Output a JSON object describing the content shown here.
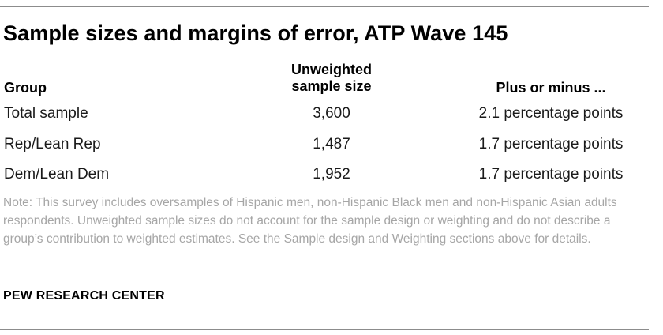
{
  "title": "Sample sizes and margins of error, ATP Wave 145",
  "table": {
    "headers": {
      "group": "Group",
      "sample_size_line1": "Unweighted",
      "sample_size_line2": "sample size",
      "margin": "Plus or minus ..."
    },
    "rows": [
      {
        "group": "Total sample",
        "sample_size": "3,600",
        "margin": "2.1 percentage points"
      },
      {
        "group": "Rep/Lean Rep",
        "sample_size": "1,487",
        "margin": "1.7 percentage points"
      },
      {
        "group": "Dem/Lean Dem",
        "sample_size": "1,952",
        "margin": "1.7 percentage points"
      }
    ]
  },
  "note": "Note: This survey includes oversamples of Hispanic men, non-Hispanic Black men and non-Hispanic Asian adults respondents. Unweighted sample sizes do not account for the sample design or weighting and do not describe a group’s contribution to weighted estimates. See the Sample design and Weighting sections above for details.",
  "source": "PEW RESEARCH CENTER"
}
